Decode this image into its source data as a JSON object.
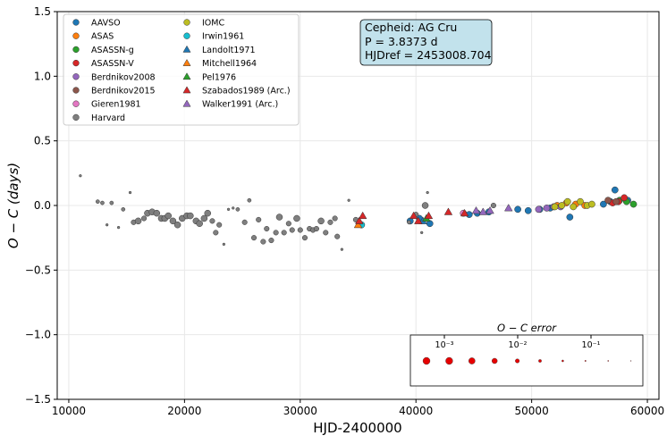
{
  "chart_data": {
    "type": "scatter",
    "xlabel": "HJD-2400000",
    "ylabel": "O − C (days)",
    "xlim": [
      9000,
      61000
    ],
    "ylim": [
      -1.5,
      1.5
    ],
    "xticks": [
      10000,
      20000,
      30000,
      40000,
      50000,
      60000
    ],
    "yticks": [
      -1.5,
      -1.0,
      -0.5,
      0.0,
      0.5,
      1.0,
      1.5
    ],
    "xtick_labels": [
      "10000",
      "20000",
      "30000",
      "40000",
      "50000",
      "60000"
    ],
    "ytick_labels": [
      "−1.5",
      "−1.0",
      "−0.5",
      "0.0",
      "0.5",
      "1.0",
      "1.5"
    ],
    "grid": true,
    "legend_placement": "top-left",
    "info_box": {
      "line1": "Cepheid: AG Cru",
      "line2": "P = 3.8373 d",
      "line3": "HJDref = 2453008.704"
    },
    "error_legend": {
      "title": "O − C error",
      "tick_labels": [
        "10⁻³",
        "10⁻²",
        "10⁻¹"
      ],
      "sizes": [
        5.5,
        5.5,
        5,
        4.2,
        3.2,
        2.3,
        1.5,
        1,
        0.8,
        0.6
      ]
    },
    "series": [
      {
        "name": "AAVSO",
        "color": "#1f77b4",
        "marker": "circle",
        "points": [
          [
            39500,
            -0.12
          ],
          [
            40300,
            -0.1
          ],
          [
            41200,
            -0.14
          ],
          [
            44600,
            -0.07
          ],
          [
            45300,
            -0.06
          ],
          [
            46300,
            -0.05
          ],
          [
            48800,
            -0.03
          ],
          [
            49700,
            -0.04
          ],
          [
            50700,
            -0.03
          ],
          [
            51600,
            -0.02
          ],
          [
            53300,
            -0.09
          ],
          [
            56200,
            0.01
          ],
          [
            56800,
            0.03
          ],
          [
            57200,
            0.12
          ],
          [
            58300,
            0.04
          ]
        ]
      },
      {
        "name": "ASAS",
        "color": "#ff7f0e",
        "marker": "circle",
        "points": [
          [
            52200,
            0.0
          ],
          [
            53000,
            0.02
          ],
          [
            53800,
            0.01
          ],
          [
            54600,
            0.0
          ]
        ]
      },
      {
        "name": "ASASSN-g",
        "color": "#2ca02c",
        "marker": "circle",
        "points": [
          [
            57600,
            0.04
          ],
          [
            58200,
            0.03
          ],
          [
            58800,
            0.01
          ]
        ]
      },
      {
        "name": "ASASSN-V",
        "color": "#d62728",
        "marker": "circle",
        "points": [
          [
            57000,
            0.02
          ],
          [
            57500,
            0.03
          ],
          [
            58000,
            0.06
          ]
        ]
      },
      {
        "name": "Berdnikov2008",
        "color": "#9467bd",
        "marker": "circle",
        "points": [
          [
            50600,
            -0.03
          ],
          [
            51300,
            -0.02
          ],
          [
            51900,
            -0.01
          ],
          [
            52500,
            -0.01
          ]
        ]
      },
      {
        "name": "Berdnikov2015",
        "color": "#8c564b",
        "marker": "circle",
        "points": [
          [
            56600,
            0.04
          ],
          [
            57300,
            0.03
          ]
        ]
      },
      {
        "name": "Gieren1981",
        "color": "#e377c2",
        "marker": "circle",
        "points": [
          [
            44100,
            -0.06
          ]
        ]
      },
      {
        "name": "Harvard",
        "color": "#7f7f7f",
        "marker": "circle",
        "points": [
          [
            11000,
            0.23,
            2
          ],
          [
            12500,
            0.03,
            3
          ],
          [
            12900,
            0.02,
            3
          ],
          [
            13700,
            0.02,
            3
          ],
          [
            13300,
            -0.15,
            2
          ],
          [
            14300,
            -0.17,
            2
          ],
          [
            14700,
            -0.03,
            3
          ],
          [
            15300,
            0.1,
            2
          ],
          [
            15600,
            -0.13,
            4
          ],
          [
            16000,
            -0.12,
            5
          ],
          [
            16500,
            -0.1,
            4
          ],
          [
            16800,
            -0.06,
            5
          ],
          [
            17200,
            -0.05,
            5
          ],
          [
            17600,
            -0.06,
            5
          ],
          [
            18000,
            -0.1,
            5
          ],
          [
            18300,
            -0.1,
            5
          ],
          [
            18600,
            -0.08,
            5
          ],
          [
            19000,
            -0.12,
            5
          ],
          [
            19400,
            -0.15,
            5
          ],
          [
            19800,
            -0.1,
            5
          ],
          [
            20200,
            -0.08,
            5
          ],
          [
            20500,
            -0.08,
            5
          ],
          [
            21000,
            -0.12,
            5
          ],
          [
            21300,
            -0.14,
            5
          ],
          [
            21700,
            -0.1,
            5
          ],
          [
            22000,
            -0.06,
            5
          ],
          [
            22400,
            -0.12,
            4
          ],
          [
            22700,
            -0.21,
            4
          ],
          [
            23000,
            -0.15,
            4
          ],
          [
            23400,
            -0.3,
            2
          ],
          [
            23800,
            -0.03,
            2
          ],
          [
            24200,
            -0.02,
            2
          ],
          [
            24600,
            -0.03,
            3
          ],
          [
            25200,
            -0.13,
            4
          ],
          [
            25600,
            0.04,
            3
          ],
          [
            26000,
            -0.25,
            4
          ],
          [
            26400,
            -0.11,
            4
          ],
          [
            26800,
            -0.28,
            4
          ],
          [
            27100,
            -0.18,
            4
          ],
          [
            27500,
            -0.27,
            4
          ],
          [
            27900,
            -0.21,
            4
          ],
          [
            28200,
            -0.09,
            5
          ],
          [
            28600,
            -0.21,
            4
          ],
          [
            29000,
            -0.14,
            4
          ],
          [
            29300,
            -0.19,
            4
          ],
          [
            29700,
            -0.1,
            5
          ],
          [
            30000,
            -0.19,
            4
          ],
          [
            30400,
            -0.25,
            4
          ],
          [
            30800,
            -0.18,
            4
          ],
          [
            31100,
            -0.19,
            4
          ],
          [
            31400,
            -0.18,
            4
          ],
          [
            31800,
            -0.12,
            5
          ],
          [
            32200,
            -0.21,
            4
          ],
          [
            32600,
            -0.13,
            4
          ],
          [
            33000,
            -0.1,
            4
          ],
          [
            33200,
            -0.24,
            4
          ],
          [
            33600,
            -0.34,
            2
          ],
          [
            34200,
            0.04,
            2
          ],
          [
            34800,
            -0.11,
            4
          ],
          [
            39400,
            -0.13,
            3
          ],
          [
            40000,
            -0.07,
            4
          ],
          [
            40500,
            -0.21,
            2
          ],
          [
            40800,
            0.0,
            5
          ],
          [
            41000,
            0.1,
            2
          ],
          [
            46700,
            0.0,
            4
          ]
        ]
      },
      {
        "name": "IOMC",
        "color": "#bcbd22",
        "marker": "circle",
        "points": [
          [
            52000,
            -0.01
          ],
          [
            52600,
            0.0
          ],
          [
            53100,
            0.03
          ],
          [
            53600,
            -0.01
          ],
          [
            54200,
            0.03
          ],
          [
            54800,
            0.0
          ],
          [
            55200,
            0.01
          ]
        ]
      },
      {
        "name": "Irwin1961",
        "color": "#17becf",
        "marker": "circle",
        "points": [
          [
            35300,
            -0.15
          ]
        ]
      },
      {
        "name": "Landolt1971",
        "color": "#1f77b4",
        "marker": "triangle",
        "points": [
          [
            40600,
            -0.12
          ]
        ]
      },
      {
        "name": "Mitchell1964",
        "color": "#ff7f0e",
        "marker": "triangle",
        "points": [
          [
            35000,
            -0.15
          ]
        ]
      },
      {
        "name": "Pel1976",
        "color": "#2ca02c",
        "marker": "triangle",
        "points": [
          [
            40900,
            -0.1
          ]
        ]
      },
      {
        "name": "Szabados1989 (Arc.)",
        "color": "#d62728",
        "marker": "triangle",
        "points": [
          [
            35100,
            -0.12
          ],
          [
            35400,
            -0.08
          ],
          [
            39800,
            -0.08
          ],
          [
            40200,
            -0.12
          ],
          [
            41100,
            -0.08
          ],
          [
            42800,
            -0.05
          ],
          [
            44200,
            -0.06
          ]
        ]
      },
      {
        "name": "Walker1991 (Arc.)",
        "color": "#9467bd",
        "marker": "triangle",
        "points": [
          [
            45200,
            -0.04
          ],
          [
            45800,
            -0.05
          ],
          [
            46400,
            -0.04
          ],
          [
            48000,
            -0.02
          ]
        ]
      }
    ]
  }
}
